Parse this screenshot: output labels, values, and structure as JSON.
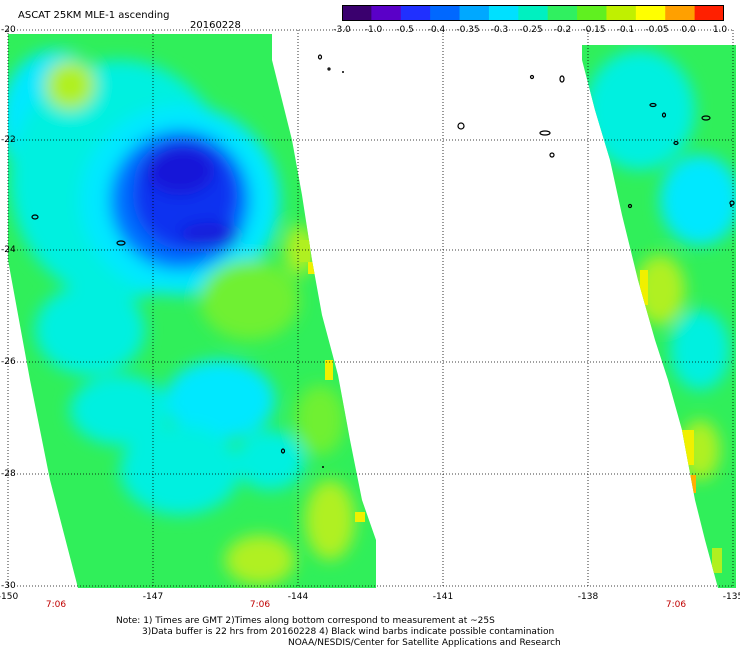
{
  "header": {
    "title": "ASCAT 25KM MLE-1 ascending",
    "date": "20160228"
  },
  "colorbar": {
    "labels": [
      "-3.0",
      "-1.0",
      "-0.5",
      "-0.4",
      "-0.35",
      "-0.3",
      "-0.25",
      "-0.2",
      "-0.15",
      "-0.1",
      "-0.05",
      "0.0",
      "1.0"
    ],
    "colors": [
      "#3a006e",
      "#5a00c8",
      "#2030ff",
      "#0068ff",
      "#00a8ff",
      "#00e0ff",
      "#00f0c0",
      "#30f060",
      "#60f020",
      "#c0f000",
      "#ffff00",
      "#ffa000",
      "#ff2000"
    ]
  },
  "map": {
    "lat_labels": [
      "-20",
      "-22",
      "-24",
      "-26",
      "-28",
      "-30"
    ],
    "lon_labels": [
      "-150",
      "-147",
      "-144",
      "-141",
      "-138",
      "-135"
    ],
    "time_labels": [
      "7:06",
      "7:06",
      "7:06"
    ],
    "swath_colors": {
      "base": "#30ef5a",
      "cyan": "#00f0e0",
      "aqua": "#00e8ff",
      "blue_mid": "#0070ff",
      "blue_dark": "#1030f0",
      "blue_core": "#1818d8",
      "yellow_green": "#b0f020",
      "yellow": "#f0f000",
      "orange": "#ffb000",
      "green_light": "#70f030"
    }
  },
  "notes": {
    "line1": "Note: 1) Times are GMT 2)Times along bottom correspond to measurement at ~25S",
    "line2": "3)Data buffer is 22 hrs from 20160228 4) Black wind barbs indicate possible contamination",
    "line3": "NOAA/NESDIS/Center for Satellite Applications and Research"
  }
}
